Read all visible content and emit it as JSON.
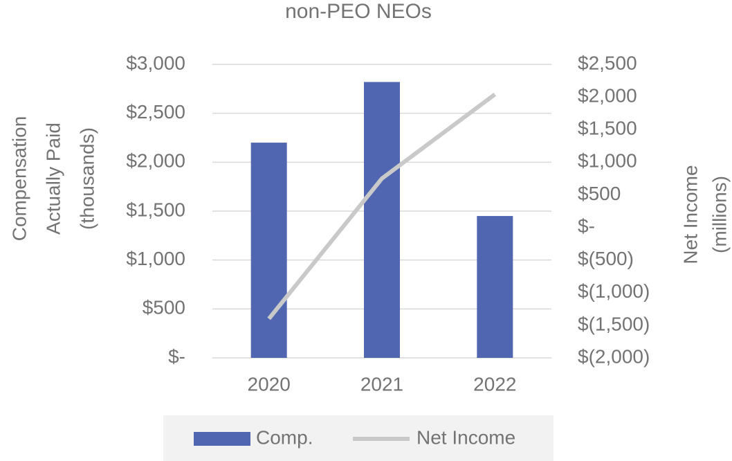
{
  "chart_data": {
    "type": "bar-line",
    "title": "non-PEO NEOs",
    "y_label": [
      "Compensation",
      "Actually Paid",
      "(thousands)"
    ],
    "y2_label": [
      "Net Income",
      "(millions)"
    ],
    "categories": [
      "2020",
      "2021",
      "2022"
    ],
    "series": [
      {
        "name": "Comp.",
        "type": "bar",
        "color": "#5066b1",
        "values": [
          2200,
          2820,
          1450
        ]
      },
      {
        "name": "Net Income",
        "type": "line",
        "axis": "y2",
        "color": "#c9c9c9",
        "values": [
          -1400,
          750,
          2040
        ]
      }
    ],
    "ylim": [
      0,
      3000
    ],
    "yticks": [
      {
        "value": 0,
        "label": "$-"
      },
      {
        "value": 500,
        "label": "$500"
      },
      {
        "value": 1000,
        "label": "$1,000"
      },
      {
        "value": 1500,
        "label": "$1,500"
      },
      {
        "value": 2000,
        "label": "$2,000"
      },
      {
        "value": 2500,
        "label": "$2,500"
      },
      {
        "value": 3000,
        "label": "$3,000"
      }
    ],
    "y2lim": [
      -2000,
      2500
    ],
    "y2ticks": [
      {
        "value": -2000,
        "label": "$(2,000)"
      },
      {
        "value": -1500,
        "label": "$(1,500)"
      },
      {
        "value": -1000,
        "label": "$(1,000)"
      },
      {
        "value": -500,
        "label": "$(500)"
      },
      {
        "value": 0,
        "label": "$-"
      },
      {
        "value": 500,
        "label": "$500"
      },
      {
        "value": 1000,
        "label": "$1,000"
      },
      {
        "value": 1500,
        "label": "$1,500"
      },
      {
        "value": 2000,
        "label": "$2,000"
      },
      {
        "value": 2500,
        "label": "$2,500"
      }
    ],
    "grid": true,
    "legend": "bottom"
  }
}
